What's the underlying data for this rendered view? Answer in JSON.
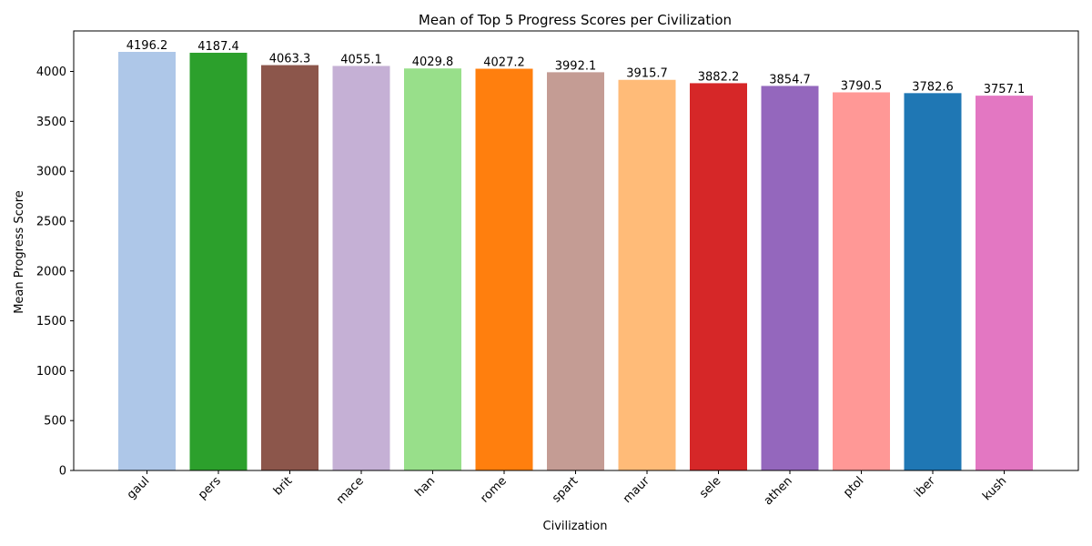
{
  "chart_data": {
    "type": "bar",
    "title": "Mean of Top 5 Progress Scores per Civilization",
    "xlabel": "Civilization",
    "ylabel": "Mean Progress Score",
    "categories": [
      "gaul",
      "pers",
      "brit",
      "mace",
      "han",
      "rome",
      "spart",
      "maur",
      "sele",
      "athen",
      "ptol",
      "iber",
      "kush"
    ],
    "values": [
      4196.2,
      4187.4,
      4063.3,
      4055.1,
      4029.8,
      4027.2,
      3992.1,
      3915.7,
      3882.2,
      3854.7,
      3790.5,
      3782.6,
      3757.1
    ],
    "data_labels": [
      "4196.2",
      "4187.4",
      "4063.3",
      "4055.1",
      "4029.8",
      "4027.2",
      "3992.1",
      "3915.7",
      "3882.2",
      "3854.7",
      "3790.5",
      "3782.6",
      "3757.1"
    ],
    "colors": [
      "#aec7e8",
      "#2ca02c",
      "#8c564b",
      "#c5b0d5",
      "#98df8a",
      "#ff7f0e",
      "#c49c94",
      "#ffbb78",
      "#d62728",
      "#9467bd",
      "#ff9896",
      "#1f77b4",
      "#e377c2"
    ],
    "ylim": [
      0,
      4406
    ],
    "yticks": [
      0,
      500,
      1000,
      1500,
      2000,
      2500,
      3000,
      3500,
      4000
    ],
    "ytick_labels": [
      "0",
      "500",
      "1000",
      "1500",
      "2000",
      "2500",
      "3000",
      "3500",
      "4000"
    ],
    "grid": false,
    "legend": "none"
  }
}
